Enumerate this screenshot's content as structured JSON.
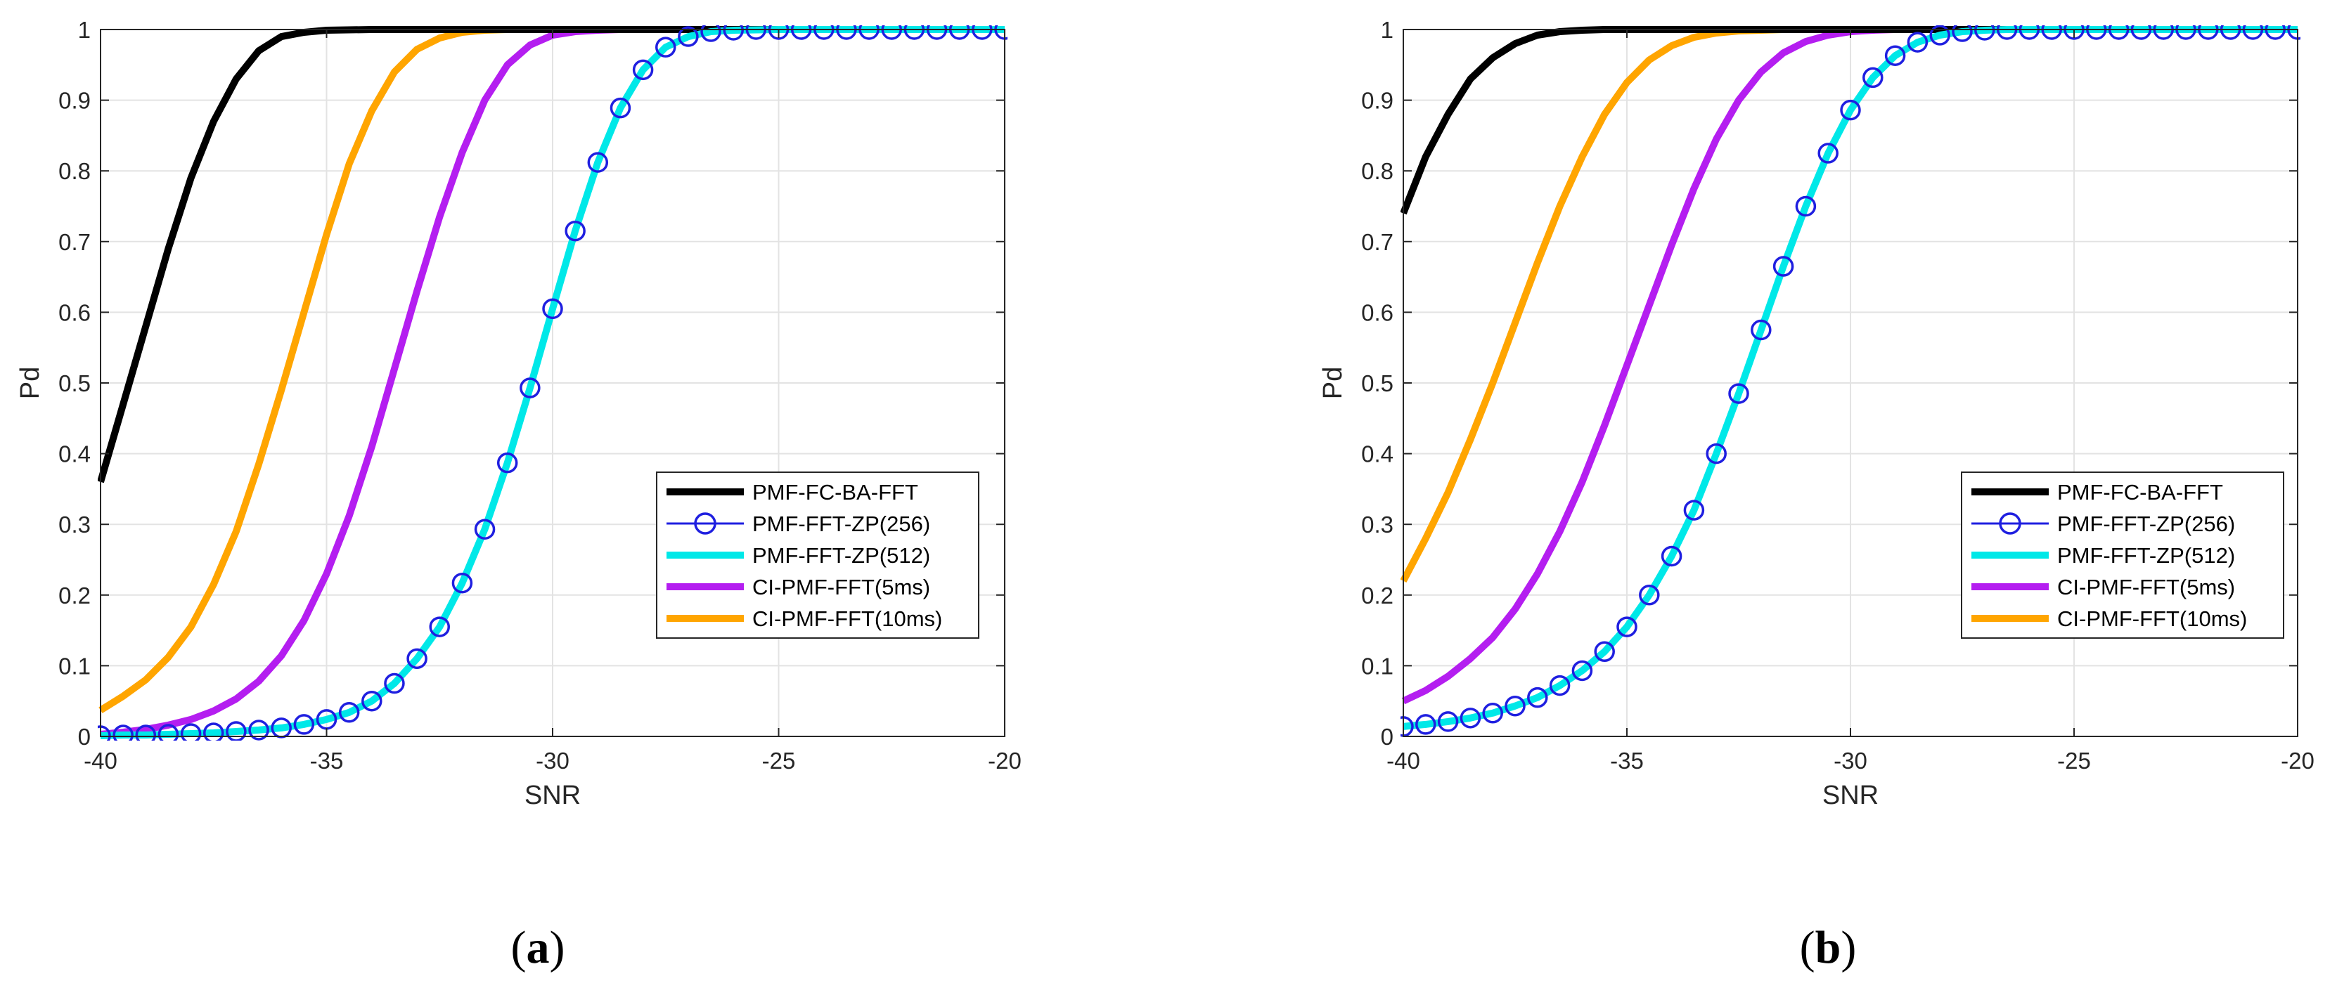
{
  "chart_data": [
    {
      "type": "line",
      "caption": {
        "open": "(",
        "letter": "a",
        "close": ")"
      },
      "xlabel": "SNR",
      "ylabel": "Pd",
      "xlim": [
        -40,
        -20
      ],
      "ylim": [
        0,
        1
      ],
      "xticks": [
        -40,
        -35,
        -30,
        -25,
        -20
      ],
      "yticks": [
        0,
        0.1,
        0.2,
        0.3,
        0.4,
        0.5,
        0.6,
        0.7,
        0.8,
        0.9,
        1
      ],
      "ytick_labels": [
        "0",
        "0.1",
        "0.2",
        "0.3",
        "0.4",
        "0.5",
        "0.6",
        "0.7",
        "0.8",
        "0.9",
        "1"
      ],
      "grid": true,
      "legend_position": "lower-right",
      "series": [
        {
          "name": "PMF-FC-BA-FFT",
          "color": "#000000",
          "style": "thick-line",
          "x": [
            -40,
            -39.5,
            -39,
            -38.5,
            -38,
            -37.5,
            -37,
            -36.5,
            -36,
            -35.5,
            -35,
            -34,
            -33,
            -20
          ],
          "y": [
            0.36,
            0.47,
            0.58,
            0.69,
            0.79,
            0.87,
            0.93,
            0.97,
            0.99,
            0.996,
            0.999,
            1,
            1,
            1
          ]
        },
        {
          "name": "PMF-FFT-ZP(256)",
          "color": "#1f1fe0",
          "style": "line-circles",
          "x": [
            -40,
            -39.5,
            -39,
            -38.5,
            -38,
            -37.5,
            -37,
            -36.5,
            -36,
            -35.5,
            -35,
            -34.5,
            -34,
            -33.5,
            -33,
            -32.5,
            -32,
            -31.5,
            -31,
            -30.5,
            -30,
            -29.5,
            -29,
            -28.5,
            -28,
            -27.5,
            -27,
            -26.5,
            -26,
            -25.5,
            -25,
            -24.5,
            -24,
            -23.5,
            -23,
            -22.5,
            -22,
            -21.5,
            -21,
            -20.5,
            -20
          ],
          "y": [
            0.001,
            0.002,
            0.002,
            0.003,
            0.004,
            0.005,
            0.007,
            0.009,
            0.012,
            0.017,
            0.024,
            0.034,
            0.05,
            0.075,
            0.11,
            0.155,
            0.217,
            0.293,
            0.387,
            0.493,
            0.605,
            0.715,
            0.812,
            0.889,
            0.943,
            0.975,
            0.99,
            0.997,
            0.999,
            1,
            1,
            1,
            1,
            1,
            1,
            1,
            1,
            1,
            1,
            1,
            1
          ]
        },
        {
          "name": "PMF-FFT-ZP(512)",
          "color": "#00e8e8",
          "style": "thick-line",
          "x": [
            -40,
            -39.5,
            -39,
            -38.5,
            -38,
            -37.5,
            -37,
            -36.5,
            -36,
            -35.5,
            -35,
            -34.5,
            -34,
            -33.5,
            -33,
            -32.5,
            -32,
            -31.5,
            -31,
            -30.5,
            -30,
            -29.5,
            -29,
            -28.5,
            -28,
            -27.5,
            -27,
            -26.5,
            -26,
            -25,
            -20
          ],
          "y": [
            0.001,
            0.002,
            0.002,
            0.003,
            0.004,
            0.005,
            0.007,
            0.009,
            0.012,
            0.017,
            0.024,
            0.034,
            0.05,
            0.075,
            0.11,
            0.155,
            0.217,
            0.293,
            0.387,
            0.493,
            0.605,
            0.715,
            0.812,
            0.889,
            0.943,
            0.975,
            0.99,
            0.997,
            0.999,
            1,
            1
          ]
        },
        {
          "name": "CI-PMF-FFT(5ms)",
          "color": "#b41ef0",
          "style": "thick-line",
          "x": [
            -40,
            -39.5,
            -39,
            -38.5,
            -38,
            -37.5,
            -37,
            -36.5,
            -36,
            -35.5,
            -35,
            -34.5,
            -34,
            -33.5,
            -33,
            -32.5,
            -32,
            -31.5,
            -31,
            -30.5,
            -30,
            -29.5,
            -29,
            -28.5,
            -28,
            -20
          ],
          "y": [
            0.003,
            0.006,
            0.01,
            0.016,
            0.024,
            0.036,
            0.053,
            0.078,
            0.114,
            0.164,
            0.23,
            0.312,
            0.41,
            0.52,
            0.63,
            0.735,
            0.826,
            0.9,
            0.95,
            0.978,
            0.992,
            0.997,
            0.999,
            1,
            1,
            1
          ]
        },
        {
          "name": "CI-PMF-FFT(10ms)",
          "color": "#ffa500",
          "style": "thick-line",
          "x": [
            -40,
            -39.5,
            -39,
            -38.5,
            -38,
            -37.5,
            -37,
            -36.5,
            -36,
            -35.5,
            -35,
            -34.5,
            -34,
            -33.5,
            -33,
            -32.5,
            -32,
            -31.5,
            -31,
            -30.5,
            -30,
            -20
          ],
          "y": [
            0.037,
            0.057,
            0.08,
            0.112,
            0.155,
            0.215,
            0.29,
            0.385,
            0.49,
            0.6,
            0.71,
            0.81,
            0.885,
            0.94,
            0.972,
            0.988,
            0.996,
            0.999,
            1,
            1,
            1,
            1
          ]
        }
      ]
    },
    {
      "type": "line",
      "caption": {
        "open": "(",
        "letter": "b",
        "close": ")"
      },
      "xlabel": "SNR",
      "ylabel": "Pd",
      "xlim": [
        -40,
        -20
      ],
      "ylim": [
        0,
        1
      ],
      "xticks": [
        -40,
        -35,
        -30,
        -25,
        -20
      ],
      "yticks": [
        0,
        0.1,
        0.2,
        0.3,
        0.4,
        0.5,
        0.6,
        0.7,
        0.8,
        0.9,
        1
      ],
      "ytick_labels": [
        "0",
        "0.1",
        "0.2",
        "0.3",
        "0.4",
        "0.5",
        "0.6",
        "0.7",
        "0.8",
        "0.9",
        "1"
      ],
      "grid": true,
      "legend_position": "lower-right",
      "series": [
        {
          "name": "PMF-FC-BA-FFT",
          "color": "#000000",
          "style": "thick-line",
          "x": [
            -40,
            -39.5,
            -39,
            -38.5,
            -38,
            -37.5,
            -37,
            -36.5,
            -36,
            -35.5,
            -35,
            -34,
            -20
          ],
          "y": [
            0.74,
            0.82,
            0.88,
            0.93,
            0.96,
            0.98,
            0.992,
            0.997,
            0.999,
            1,
            1,
            1,
            1
          ]
        },
        {
          "name": "PMF-FFT-ZP(256)",
          "color": "#1f1fe0",
          "style": "line-circles",
          "x": [
            -40,
            -39.5,
            -39,
            -38.5,
            -38,
            -37.5,
            -37,
            -36.5,
            -36,
            -35.5,
            -35,
            -34.5,
            -34,
            -33.5,
            -33,
            -32.5,
            -32,
            -31.5,
            -31,
            -30.5,
            -30,
            -29.5,
            -29,
            -28.5,
            -28,
            -27.5,
            -27,
            -26.5,
            -26,
            -25.5,
            -25,
            -24.5,
            -24,
            -23.5,
            -23,
            -22.5,
            -22,
            -21.5,
            -21,
            -20.5,
            -20
          ],
          "y": [
            0.014,
            0.017,
            0.021,
            0.026,
            0.033,
            0.043,
            0.055,
            0.072,
            0.093,
            0.12,
            0.155,
            0.2,
            0.255,
            0.32,
            0.4,
            0.485,
            0.575,
            0.665,
            0.75,
            0.825,
            0.886,
            0.932,
            0.963,
            0.982,
            0.992,
            0.997,
            0.999,
            1,
            1,
            1,
            1,
            1,
            1,
            1,
            1,
            1,
            1,
            1,
            1,
            1,
            1
          ]
        },
        {
          "name": "PMF-FFT-ZP(512)",
          "color": "#00e8e8",
          "style": "thick-line",
          "x": [
            -40,
            -39.5,
            -39,
            -38.5,
            -38,
            -37.5,
            -37,
            -36.5,
            -36,
            -35.5,
            -35,
            -34.5,
            -34,
            -33.5,
            -33,
            -32.5,
            -32,
            -31.5,
            -31,
            -30.5,
            -30,
            -29.5,
            -29,
            -28.5,
            -28,
            -27.5,
            -27,
            -26.5,
            -20
          ],
          "y": [
            0.014,
            0.017,
            0.021,
            0.026,
            0.033,
            0.043,
            0.055,
            0.072,
            0.093,
            0.12,
            0.155,
            0.2,
            0.255,
            0.32,
            0.4,
            0.485,
            0.575,
            0.665,
            0.75,
            0.825,
            0.886,
            0.932,
            0.963,
            0.982,
            0.992,
            0.997,
            0.999,
            1,
            1
          ]
        },
        {
          "name": "CI-PMF-FFT(5ms)",
          "color": "#b41ef0",
          "style": "thick-line",
          "x": [
            -40,
            -39.5,
            -39,
            -38.5,
            -38,
            -37.5,
            -37,
            -36.5,
            -36,
            -35.5,
            -35,
            -34.5,
            -34,
            -33.5,
            -33,
            -32.5,
            -32,
            -31.5,
            -31,
            -30.5,
            -30,
            -29.5,
            -29,
            -20
          ],
          "y": [
            0.05,
            0.065,
            0.085,
            0.11,
            0.14,
            0.18,
            0.23,
            0.29,
            0.36,
            0.44,
            0.525,
            0.61,
            0.695,
            0.775,
            0.845,
            0.9,
            0.94,
            0.967,
            0.983,
            0.992,
            0.997,
            0.999,
            1,
            1
          ]
        },
        {
          "name": "CI-PMF-FFT(10ms)",
          "color": "#ffa500",
          "style": "thick-line",
          "x": [
            -40,
            -39.5,
            -39,
            -38.5,
            -38,
            -37.5,
            -37,
            -36.5,
            -36,
            -35.5,
            -35,
            -34.5,
            -34,
            -33.5,
            -33,
            -32.5,
            -32,
            -31.5,
            -31,
            -20
          ],
          "y": [
            0.22,
            0.28,
            0.345,
            0.42,
            0.5,
            0.585,
            0.67,
            0.75,
            0.82,
            0.88,
            0.925,
            0.957,
            0.977,
            0.989,
            0.995,
            0.998,
            0.999,
            1,
            1,
            1
          ]
        }
      ]
    }
  ]
}
